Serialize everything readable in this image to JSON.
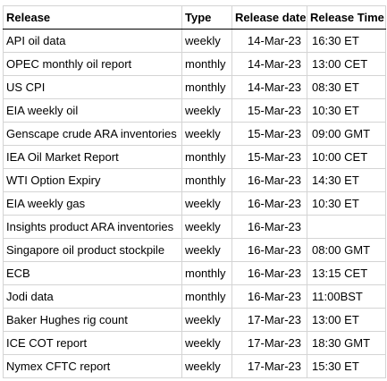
{
  "headers": {
    "release": "Release",
    "type": "Type",
    "date": "Release date",
    "time": "Release Time"
  },
  "rows": [
    {
      "release": "API oil data",
      "type": "weekly",
      "date": "14-Mar-23",
      "time": "16:30 ET"
    },
    {
      "release": "OPEC monthly oil report",
      "type": "monthly",
      "date": "14-Mar-23",
      "time": "13:00 CET"
    },
    {
      "release": "US CPI",
      "type": "monthly",
      "date": "14-Mar-23",
      "time": "08:30 ET"
    },
    {
      "release": "EIA weekly oil",
      "type": "weekly",
      "date": "15-Mar-23",
      "time": "10:30 ET"
    },
    {
      "release": "Genscape crude ARA inventories",
      "type": "weekly",
      "date": "15-Mar-23",
      "time": "09:00 GMT"
    },
    {
      "release": "IEA Oil Market Report",
      "type": "monthly",
      "date": "15-Mar-23",
      "time": "10:00 CET"
    },
    {
      "release": "WTI Option Expiry",
      "type": "monthly",
      "date": "16-Mar-23",
      "time": "14:30 ET"
    },
    {
      "release": "EIA weekly gas",
      "type": "weekly",
      "date": "16-Mar-23",
      "time": "10:30 ET"
    },
    {
      "release": "Insights product ARA inventories",
      "type": "weekly",
      "date": "16-Mar-23",
      "time": ""
    },
    {
      "release": "Singapore oil product stockpile",
      "type": "weekly",
      "date": "16-Mar-23",
      "time": "08:00 GMT"
    },
    {
      "release": "ECB",
      "type": "monthly",
      "date": "16-Mar-23",
      "time": "13:15 CET"
    },
    {
      "release": "Jodi data",
      "type": "monthly",
      "date": "16-Mar-23",
      "time": "11:00BST"
    },
    {
      "release": "Baker Hughes rig count",
      "type": "weekly",
      "date": "17-Mar-23",
      "time": "13:00 ET"
    },
    {
      "release": "ICE COT report",
      "type": "weekly",
      "date": "17-Mar-23",
      "time": "18:30 GMT"
    },
    {
      "release": "Nymex CFTC report",
      "type": "weekly",
      "date": "17-Mar-23",
      "time": "15:30 ET"
    }
  ]
}
